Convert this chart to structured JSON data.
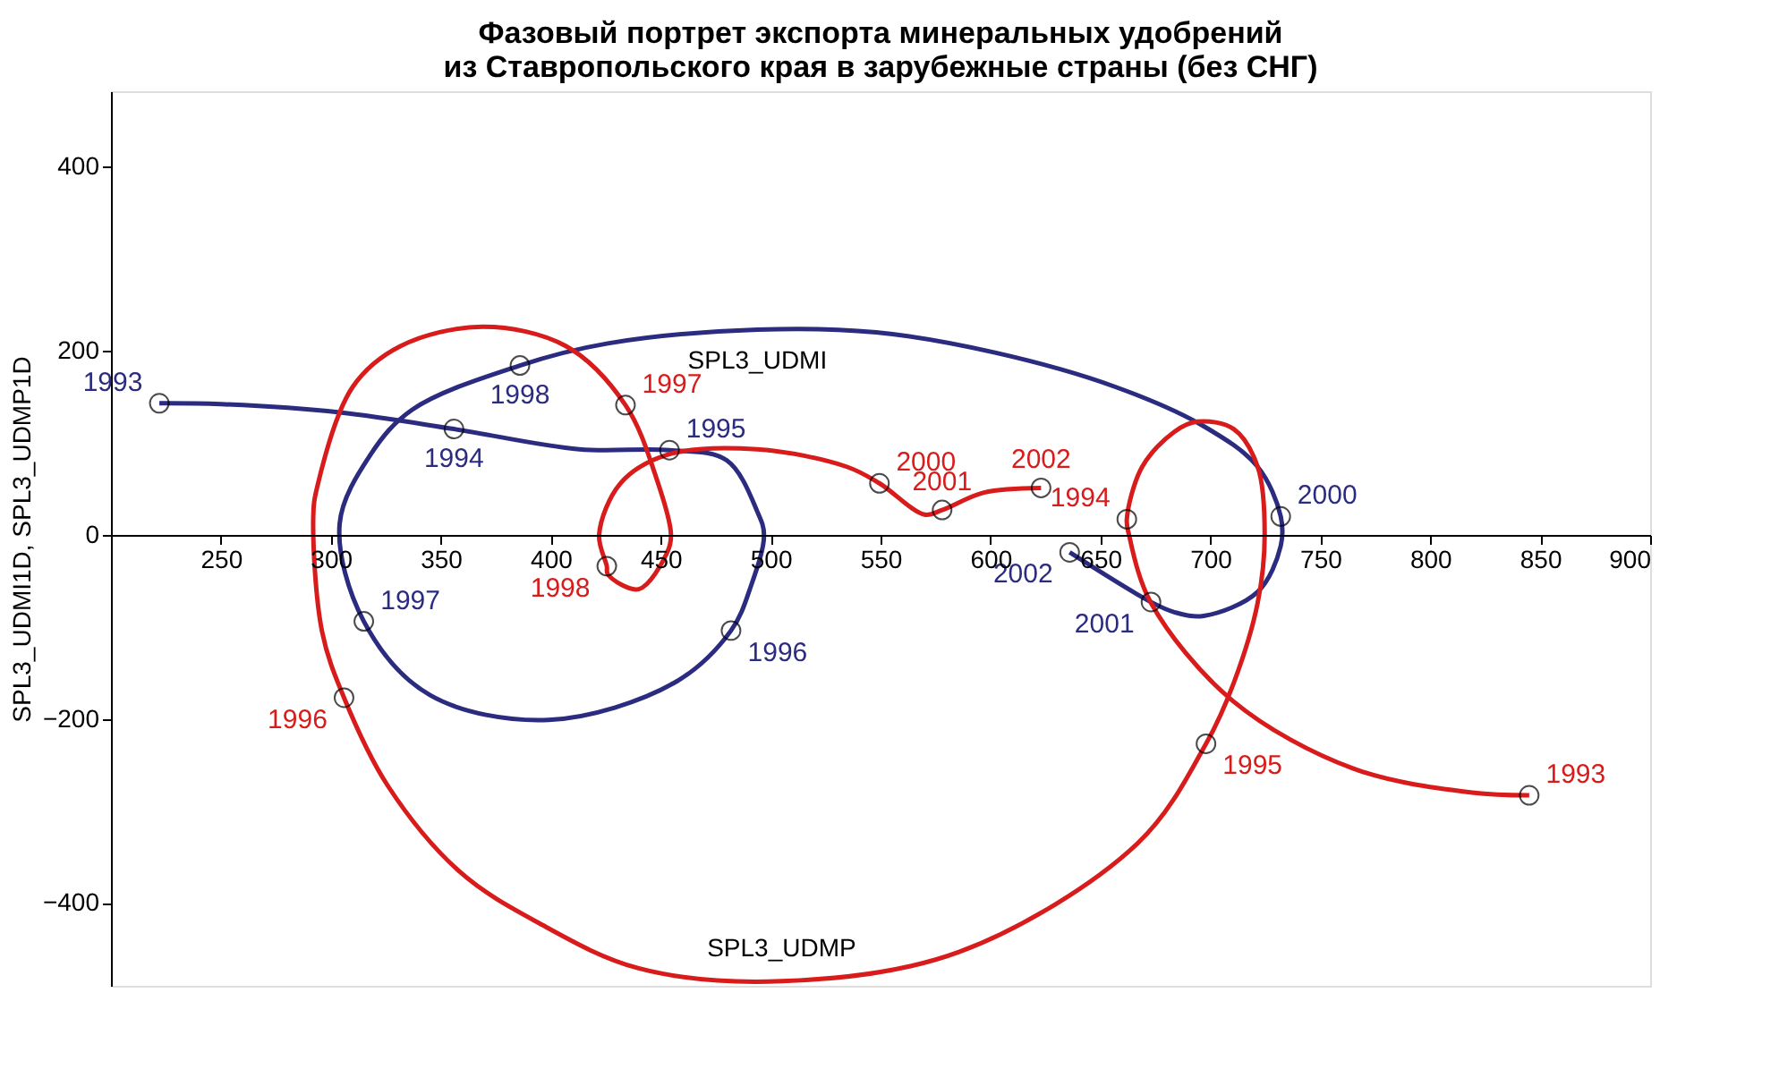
{
  "chart_data": {
    "type": "line",
    "title": [
      "Фазовый портрет экспорта минеральных удобрений",
      "из Ставропольского края в зарубежные страны (без СНГ)"
    ],
    "ylabel": "SPL3_UDMI1D, SPL3_UDMP1D",
    "xlim": [
      200,
      900
    ],
    "xticks": [
      250,
      300,
      350,
      400,
      450,
      500,
      550,
      600,
      650,
      700,
      750,
      800,
      850,
      900
    ],
    "ylim": [
      -490,
      482
    ],
    "yticks": [
      -400,
      -200,
      0,
      200,
      400
    ],
    "grid": false,
    "line_style": "solid",
    "series": [
      {
        "name": "SPL3_UDMI",
        "color": "#2b2b80",
        "x": [
          222,
          250,
          304,
          356,
          413,
          454,
          480,
          494,
          497,
          491,
          482,
          456,
          399,
          345,
          315,
          304,
          318,
          337,
          386,
          426,
          494,
          548,
          602,
          656.5,
          697,
          721.5,
          732,
          732,
          721.5,
          697,
          683.6,
          673,
          636
        ],
        "values": [
          143,
          142,
          133,
          115,
          93,
          92,
          81,
          25,
          0,
          -56,
          -104,
          -161,
          -201,
          -174,
          -94,
          12,
          87,
          136,
          184,
          208,
          223,
          220,
          198,
          161,
          118,
          74,
          20,
          -12,
          -62,
          -88,
          -84,
          -73,
          -19
        ]
      },
      {
        "name": "SPL3_UDMP",
        "color": "#d81b1b",
        "x": [
          845,
          819,
          765,
          710,
          673,
          663,
          662,
          669,
          683.6,
          694,
          710.6,
          721.5,
          724.7,
          721.5,
          710.6,
          698,
          667,
          586,
          505,
          440,
          394,
          358.6,
          326,
          306,
          296,
          292,
          293.6,
          310,
          331.6,
          369,
          407,
          434,
          448,
          454.7,
          453,
          440,
          426,
          425.5,
          422,
          431.7,
          453,
          494,
          534.6,
          549.5,
          570,
          578,
          597,
          623
        ],
        "values": [
          -283,
          -280,
          -254,
          -180,
          -74,
          0,
          17,
          74,
          112,
          123,
          115,
          74,
          0,
          -74,
          -161,
          -227,
          -335,
          -453,
          -485,
          -471,
          -421,
          -366,
          -273,
          -177,
          -105,
          19,
          50,
          161,
          205,
          226,
          205,
          141,
          62,
          0,
          -19,
          -59,
          -43,
          -34,
          0,
          56,
          87,
          93,
          74,
          56,
          22,
          27,
          46,
          51
        ]
      },
      {
        "type": "scatter",
        "marker": "circle",
        "color": "#000000",
        "x": [
          222,
          356,
          454,
          482,
          315,
          386,
          732,
          673,
          636
        ],
        "values": [
          143,
          115,
          92,
          -104,
          -94,
          184,
          20,
          -73,
          -19
        ]
      },
      {
        "type": "scatter",
        "marker": "circle",
        "color": "#000000",
        "x": [
          845,
          662,
          698,
          306,
          434,
          425.5,
          549.5,
          578,
          623
        ],
        "values": [
          -283,
          17,
          -227,
          -177,
          141,
          -34,
          56,
          27,
          51
        ]
      }
    ],
    "annotations": [
      {
        "text": "1993",
        "x": 222,
        "y": 143
      },
      {
        "text": "1994",
        "x": 356,
        "y": 115
      },
      {
        "text": "1995",
        "x": 454,
        "y": 92
      },
      {
        "text": "1996",
        "x": 482,
        "y": -104
      },
      {
        "text": "1997",
        "x": 315,
        "y": -94
      },
      {
        "text": "1998",
        "x": 386,
        "y": 184
      },
      {
        "text": "2000",
        "x": 732,
        "y": 20
      },
      {
        "text": "2001",
        "x": 673,
        "y": -73
      },
      {
        "text": "2002",
        "x": 636,
        "y": -19
      },
      {
        "text": "1993",
        "x": 845,
        "y": -283
      },
      {
        "text": "1994",
        "x": 662,
        "y": 17
      },
      {
        "text": "1995",
        "x": 698,
        "y": -227
      },
      {
        "text": "1996",
        "x": 306,
        "y": -177
      },
      {
        "text": "1997",
        "x": 434,
        "y": 141
      },
      {
        "text": "1998",
        "x": 425.5,
        "y": -34
      },
      {
        "text": "2000",
        "x": 549.5,
        "y": 56
      },
      {
        "text": "2001",
        "x": 578,
        "y": 27
      },
      {
        "text": "2002",
        "x": 623,
        "y": 51
      }
    ]
  }
}
